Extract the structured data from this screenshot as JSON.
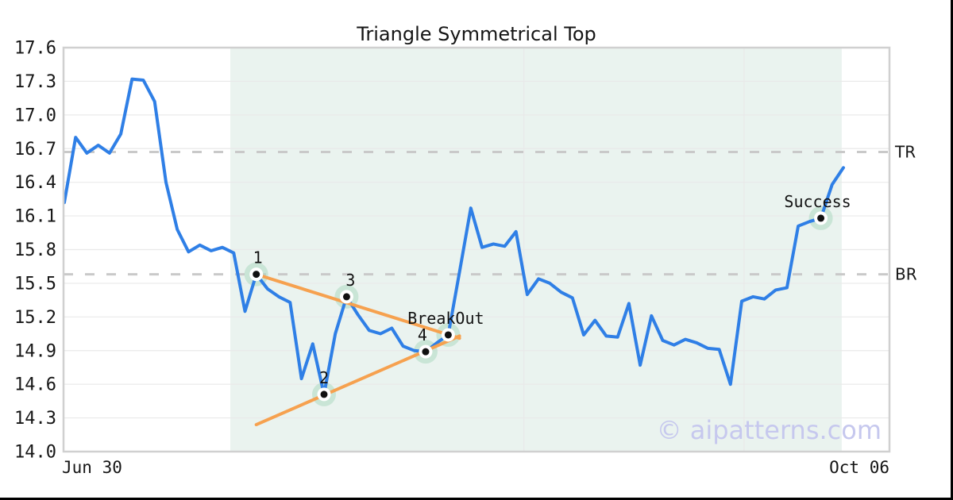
{
  "title": "Triangle Symmetrical Top",
  "watermark": "© aipatterns.com",
  "chart_data": {
    "type": "line",
    "title": "Triangle Symmetrical Top",
    "x_start_label": "Jun 30",
    "x_end_label": "Oct 06",
    "ylim": [
      14.0,
      17.6
    ],
    "yticks": [
      14.0,
      14.3,
      14.6,
      14.9,
      15.2,
      15.5,
      15.8,
      16.1,
      16.4,
      16.7,
      17.0,
      17.3,
      17.6
    ],
    "grid": true,
    "values": [
      16.22,
      16.8,
      16.66,
      16.73,
      16.66,
      16.83,
      17.32,
      17.31,
      17.12,
      16.4,
      15.98,
      15.78,
      15.84,
      15.79,
      15.82,
      15.77,
      15.25,
      15.58,
      15.45,
      15.38,
      15.33,
      14.65,
      14.96,
      14.51,
      15.05,
      15.38,
      15.22,
      15.08,
      15.05,
      15.1,
      14.94,
      14.9,
      14.89,
      14.97,
      15.04,
      15.6,
      16.17,
      15.82,
      15.85,
      15.83,
      15.96,
      15.4,
      15.54,
      15.5,
      15.42,
      15.37,
      15.04,
      15.17,
      15.03,
      15.02,
      15.32,
      14.77,
      15.21,
      14.99,
      14.95,
      15.0,
      14.97,
      14.92,
      14.91,
      14.6,
      15.34,
      15.38,
      15.36,
      15.44,
      15.46,
      16.01,
      16.05,
      16.08,
      16.38,
      16.53
    ],
    "hlines": [
      {
        "label": "TR",
        "value": 16.67
      },
      {
        "label": "BR",
        "value": 15.58
      }
    ],
    "pattern_region": {
      "start_index": 14.7,
      "end_index": 68.85
    },
    "trendlines": [
      {
        "name": "upper",
        "from_index": 17,
        "from_value": 15.58,
        "to_index": 35,
        "to_value": 15.01
      },
      {
        "name": "lower",
        "from_index": 17,
        "from_value": 14.24,
        "to_index": 35,
        "to_value": 15.03
      }
    ],
    "markers": [
      {
        "label": "1",
        "index": 17,
        "value": 15.58,
        "label_dx": 2
      },
      {
        "label": "2",
        "index": 23,
        "value": 14.51,
        "label_dx": 0
      },
      {
        "label": "3",
        "index": 25,
        "value": 15.38,
        "label_dx": 5
      },
      {
        "label": "4",
        "index": 32,
        "value": 14.89,
        "label_dx": -4
      },
      {
        "label": "BreakOut",
        "index": 34,
        "value": 15.04,
        "label_dx": -3
      },
      {
        "label": "Success",
        "index": 67,
        "value": 16.08,
        "label_dx": -4
      }
    ],
    "xgrid_indices": [
      40.7,
      60.2
    ],
    "colors": {
      "line": "#2f7fe6",
      "trendline": "#f6a14f",
      "region": "#eaf3ef",
      "halo": "#a8d8bd",
      "dashed": "#c9c9c9",
      "grid": "#e9e9e9",
      "plot_border": "#d0d0d0",
      "text": "#151515",
      "watermark": "#c6c8ee",
      "marker_dot": "#111111",
      "frame_edge": "#000000"
    }
  }
}
